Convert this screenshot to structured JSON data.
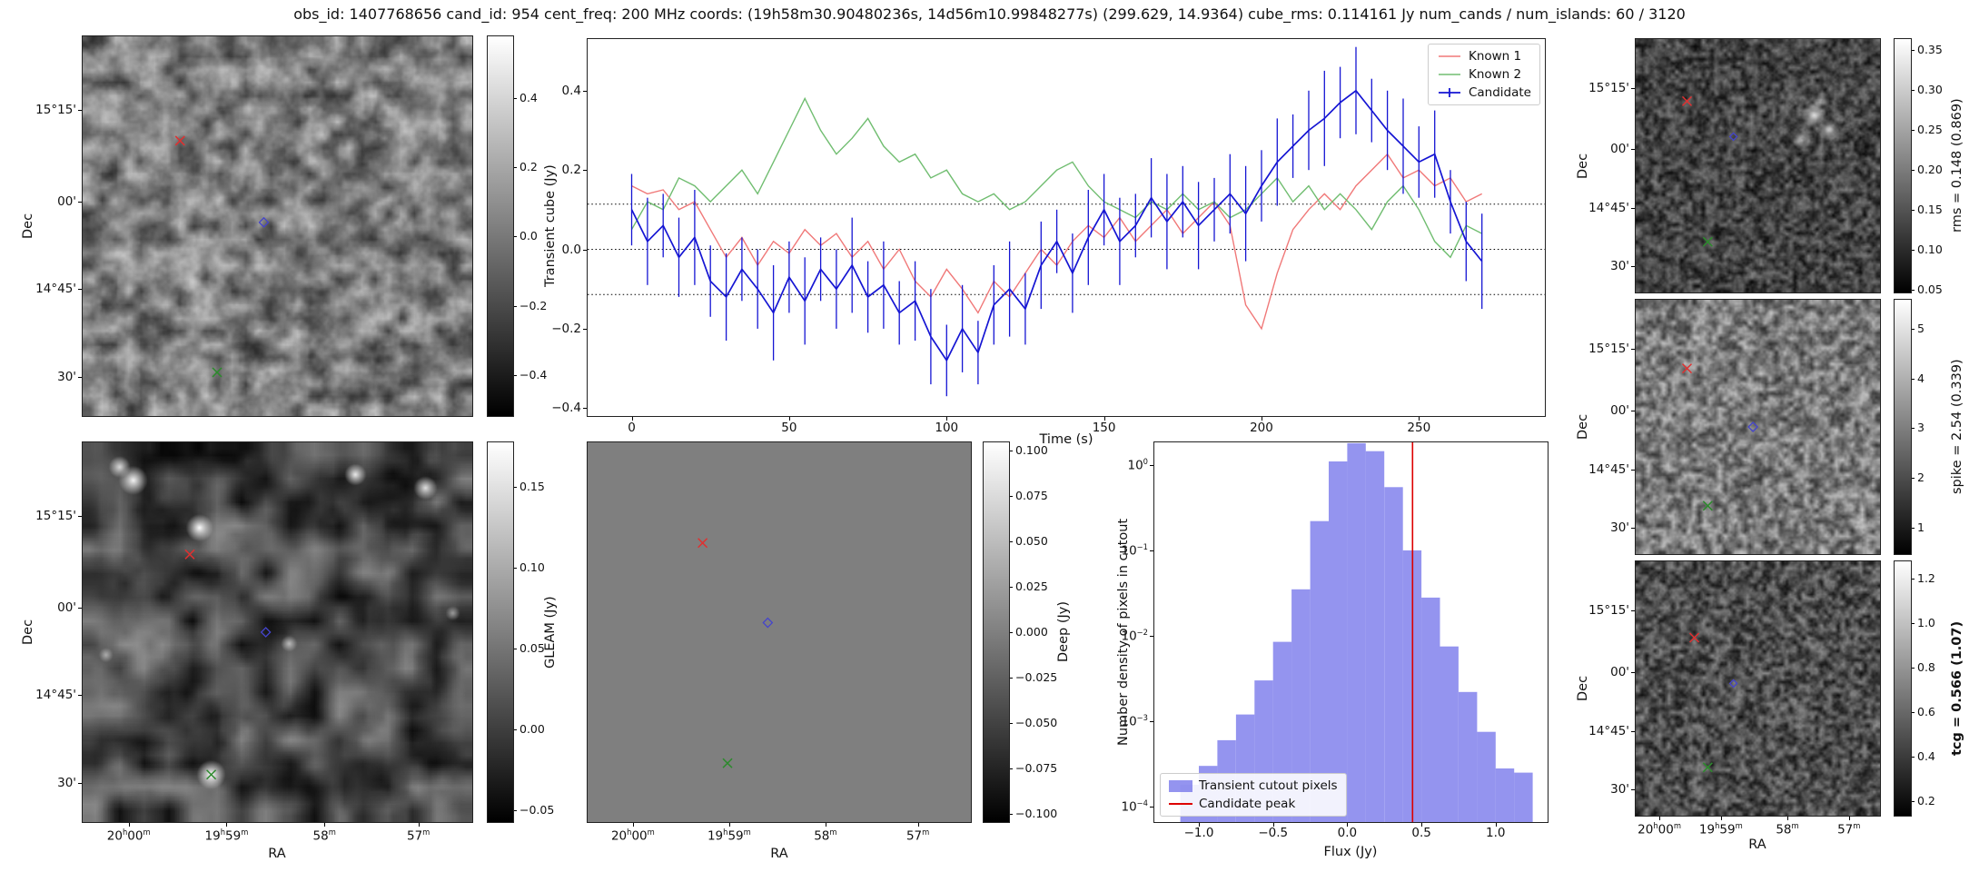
{
  "title": "obs_id: 1407768656 cand_id: 954 cent_freq: 200 MHz coords: (19h58m30.90480236s, 14d56m10.99848277s) (299.629, 14.9364) cube_rms: 0.114161 Jy num_cands / num_islands: 60 / 3120",
  "axes": {
    "dec_label": "Dec",
    "ra_label": "RA",
    "dec_ticks": [
      "15°15'",
      "00'",
      "14°45'",
      "30'"
    ],
    "ra_ticks": [
      "20h00m",
      "19h59m",
      "58m",
      "57m"
    ]
  },
  "panels": {
    "left_top": {
      "name": "Transient cube cutout",
      "colorbar": {
        "label": "Transient cube (Jy)",
        "tick_labels": [
          "0.4",
          "0.2",
          "0.0",
          "−0.2",
          "−0.4"
        ],
        "tick_values": [
          0.4,
          0.2,
          0.0,
          -0.2,
          -0.4
        ],
        "vmin": -0.52,
        "vmax": 0.58
      },
      "markers": [
        {
          "shape": "x",
          "color": "#e03030",
          "x": 0.25,
          "y": 0.275
        },
        {
          "shape": "diamond",
          "color": "#4444cc",
          "x": 0.465,
          "y": 0.49
        },
        {
          "shape": "x",
          "color": "#2d8a2d",
          "x": 0.345,
          "y": 0.885
        }
      ]
    },
    "left_bottom": {
      "name": "GLEAM cutout",
      "colorbar": {
        "label": "GLEAM (Jy)",
        "tick_labels": [
          "0.15",
          "0.10",
          "0.05",
          "0.00",
          "−0.05"
        ],
        "tick_values": [
          0.15,
          0.1,
          0.05,
          0.0,
          -0.05
        ],
        "vmin": -0.058,
        "vmax": 0.178
      },
      "markers": [
        {
          "shape": "x",
          "color": "#e03030",
          "x": 0.275,
          "y": 0.295
        },
        {
          "shape": "diamond",
          "color": "#4444cc",
          "x": 0.47,
          "y": 0.5
        },
        {
          "shape": "x",
          "color": "#2d8a2d",
          "x": 0.33,
          "y": 0.875
        }
      ]
    },
    "deep": {
      "name": "Deep image cutout",
      "colorbar": {
        "label": "Deep (Jy)",
        "tick_labels": [
          "0.100",
          "0.075",
          "0.050",
          "0.025",
          "0.000",
          "−0.025",
          "−0.050",
          "−0.075",
          "−0.100"
        ],
        "tick_values": [
          0.1,
          0.075,
          0.05,
          0.025,
          0.0,
          -0.025,
          -0.05,
          -0.075,
          -0.1
        ],
        "vmin": -0.105,
        "vmax": 0.105
      },
      "markers": [
        {
          "shape": "x",
          "color": "#e03030",
          "x": 0.3,
          "y": 0.265
        },
        {
          "shape": "diamond",
          "color": "#4444cc",
          "x": 0.47,
          "y": 0.475
        },
        {
          "shape": "x",
          "color": "#2d8a2d",
          "x": 0.365,
          "y": 0.845
        }
      ]
    },
    "right_rms": {
      "name": "rms map",
      "colorbar": {
        "label": "rms = 0.148 (0.869)",
        "tick_labels": [
          "0.35",
          "0.30",
          "0.25",
          "0.20",
          "0.15",
          "0.10",
          "0.05"
        ],
        "tick_values": [
          0.35,
          0.3,
          0.25,
          0.2,
          0.15,
          0.1,
          0.05
        ],
        "vmin": 0.045,
        "vmax": 0.365
      },
      "markers": [
        {
          "shape": "x",
          "color": "#e03030",
          "x": 0.21,
          "y": 0.245
        },
        {
          "shape": "diamond",
          "color": "#4444cc",
          "x": 0.4,
          "y": 0.385,
          "size": 4
        },
        {
          "shape": "x",
          "color": "#2d8a2d",
          "x": 0.295,
          "y": 0.8
        }
      ]
    },
    "right_spike": {
      "name": "spike map",
      "colorbar": {
        "label": "spike = 2.54 (0.339)",
        "tick_labels": [
          "5",
          "4",
          "3",
          "2",
          "1"
        ],
        "tick_values": [
          5,
          4,
          3,
          2,
          1
        ],
        "vmin": 0.45,
        "vmax": 5.6
      },
      "markers": [
        {
          "shape": "x",
          "color": "#e03030",
          "x": 0.21,
          "y": 0.27
        },
        {
          "shape": "diamond",
          "color": "#4444cc",
          "x": 0.48,
          "y": 0.5,
          "size": 5
        },
        {
          "shape": "x",
          "color": "#2d8a2d",
          "x": 0.295,
          "y": 0.81
        }
      ]
    },
    "right_tcg": {
      "name": "tcg map",
      "colorbar": {
        "label": "tcg = 0.566 (1.07)",
        "bold": true,
        "tick_labels": [
          "1.2",
          "1.0",
          "0.8",
          "0.6",
          "0.4",
          "0.2"
        ],
        "tick_values": [
          1.2,
          1.0,
          0.8,
          0.6,
          0.4,
          0.2
        ],
        "vmin": 0.13,
        "vmax": 1.28
      },
      "markers": [
        {
          "shape": "x",
          "color": "#e03030",
          "x": 0.24,
          "y": 0.3
        },
        {
          "shape": "diamond",
          "color": "#4444cc",
          "x": 0.4,
          "y": 0.48,
          "size": 4
        },
        {
          "shape": "x",
          "color": "#2d8a2d",
          "x": 0.295,
          "y": 0.81
        }
      ]
    }
  },
  "chart_data": [
    {
      "type": "line",
      "title": "",
      "xlabel": "Time (s)",
      "ylabel": "",
      "xlim": [
        -14,
        290
      ],
      "ylim": [
        -0.42,
        0.53
      ],
      "grid": false,
      "legend_position": "upper right",
      "xticks": {
        "values": [
          0,
          50,
          100,
          150,
          200,
          250
        ],
        "labels": [
          "0",
          "50",
          "100",
          "150",
          "200",
          "250"
        ]
      },
      "yticks": {
        "values": [
          0.4,
          0.2,
          0.0,
          -0.2,
          -0.4
        ],
        "labels": [
          "0.4",
          "0.2",
          "0.0",
          "−0.2",
          "−0.4"
        ]
      },
      "hlines": [
        0.114,
        0.0,
        -0.114
      ],
      "x": [
        0,
        5,
        10,
        15,
        20,
        25,
        30,
        35,
        40,
        45,
        50,
        55,
        60,
        65,
        70,
        75,
        80,
        85,
        90,
        95,
        100,
        105,
        110,
        115,
        120,
        125,
        130,
        135,
        140,
        145,
        150,
        155,
        160,
        165,
        170,
        175,
        180,
        185,
        190,
        195,
        200,
        205,
        210,
        215,
        220,
        225,
        230,
        235,
        240,
        245,
        250,
        255,
        260,
        265,
        270
      ],
      "series": [
        {
          "name": "Known 1",
          "color": "#f07878",
          "values": [
            0.16,
            0.14,
            0.15,
            0.1,
            0.12,
            0.05,
            -0.02,
            0.03,
            -0.04,
            0.02,
            -0.01,
            0.05,
            0.01,
            0.04,
            -0.02,
            0.02,
            -0.05,
            0.0,
            -0.08,
            -0.12,
            -0.05,
            -0.1,
            -0.16,
            -0.08,
            -0.12,
            -0.06,
            0.0,
            -0.04,
            0.02,
            0.06,
            0.03,
            0.08,
            0.02,
            0.06,
            0.1,
            0.04,
            0.08,
            0.12,
            0.06,
            -0.14,
            -0.2,
            -0.06,
            0.05,
            0.1,
            0.14,
            0.1,
            0.16,
            0.2,
            0.24,
            0.18,
            0.2,
            0.16,
            0.18,
            0.12,
            0.14
          ]
        },
        {
          "name": "Known 2",
          "color": "#70bd70",
          "values": [
            0.05,
            0.12,
            0.1,
            0.18,
            0.16,
            0.12,
            0.16,
            0.2,
            0.14,
            0.22,
            0.3,
            0.38,
            0.3,
            0.24,
            0.28,
            0.33,
            0.26,
            0.22,
            0.24,
            0.18,
            0.2,
            0.14,
            0.12,
            0.14,
            0.1,
            0.12,
            0.16,
            0.2,
            0.22,
            0.16,
            0.12,
            0.1,
            0.08,
            0.12,
            0.1,
            0.14,
            0.1,
            0.12,
            0.08,
            0.1,
            0.14,
            0.18,
            0.12,
            0.16,
            0.1,
            0.14,
            0.1,
            0.05,
            0.12,
            0.16,
            0.1,
            0.02,
            -0.02,
            0.06,
            0.04
          ]
        },
        {
          "name": "Candidate",
          "color": "#1515d3",
          "values": [
            0.1,
            0.02,
            0.06,
            -0.02,
            0.03,
            -0.08,
            -0.12,
            -0.05,
            -0.1,
            -0.16,
            -0.07,
            -0.13,
            -0.05,
            -0.1,
            -0.04,
            -0.12,
            -0.09,
            -0.16,
            -0.13,
            -0.22,
            -0.28,
            -0.2,
            -0.26,
            -0.14,
            -0.1,
            -0.15,
            -0.04,
            0.02,
            -0.06,
            0.03,
            0.1,
            0.02,
            0.06,
            0.13,
            0.07,
            0.12,
            0.06,
            0.1,
            0.14,
            0.09,
            0.16,
            0.22,
            0.26,
            0.3,
            0.33,
            0.37,
            0.4,
            0.35,
            0.3,
            0.26,
            0.22,
            0.24,
            0.12,
            0.02,
            -0.03
          ],
          "errors": [
            0.09,
            0.11,
            0.08,
            0.1,
            0.12,
            0.09,
            0.11,
            0.08,
            0.1,
            0.12,
            0.09,
            0.11,
            0.08,
            0.1,
            0.12,
            0.09,
            0.11,
            0.08,
            0.1,
            0.12,
            0.09,
            0.11,
            0.08,
            0.1,
            0.12,
            0.09,
            0.11,
            0.08,
            0.1,
            0.12,
            0.09,
            0.11,
            0.08,
            0.1,
            0.12,
            0.09,
            0.11,
            0.08,
            0.1,
            0.12,
            0.09,
            0.11,
            0.08,
            0.1,
            0.12,
            0.09,
            0.11,
            0.08,
            0.1,
            0.12,
            0.09,
            0.11,
            0.08,
            0.1,
            0.12
          ]
        }
      ]
    },
    {
      "type": "bar",
      "title": "",
      "xlabel": "Flux (Jy)",
      "ylabel": "Number density of pixels in cutout",
      "yscale": "log",
      "xlim": [
        -1.3,
        1.35
      ],
      "ylim": [
        6.6e-05,
        1.84
      ],
      "xticks": {
        "values": [
          -1.0,
          -0.5,
          0.0,
          0.5,
          1.0
        ],
        "labels": [
          "−1.0",
          "−0.5",
          "0.0",
          "0.5",
          "1.0"
        ]
      },
      "ytick_exponents": [
        0,
        -1,
        -2,
        -3,
        -4
      ],
      "bar_color": "#5a5ae6",
      "bar_opacity": 0.65,
      "bin_start": -1.125,
      "bin_width": 0.125,
      "counts": [
        0.00018,
        0.0003,
        0.0006,
        0.0012,
        0.003,
        0.0085,
        0.035,
        0.22,
        1.1,
        1.8,
        1.45,
        0.55,
        0.1,
        0.028,
        0.0075,
        0.0022,
        0.00075,
        0.00028,
        0.00025
      ],
      "candidate_peak_x": 0.44,
      "peak_line_color": "#dd0000",
      "legend": [
        "Transient cutout pixels",
        "Candidate peak"
      ]
    }
  ]
}
